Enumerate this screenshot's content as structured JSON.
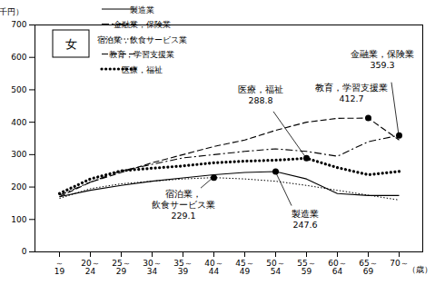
{
  "chart_data": {
    "type": "line",
    "title": "女",
    "x_label": "（歳）",
    "y_label": "（千円）",
    "categories": [
      "～19",
      "20～24",
      "25～29",
      "30～34",
      "35～39",
      "40～44",
      "45～49",
      "50～54",
      "55～59",
      "60～64",
      "65～69",
      "70～"
    ],
    "ylim": [
      0,
      700
    ],
    "yticks": [
      0,
      100,
      200,
      300,
      400,
      500,
      600,
      700
    ],
    "grid": false,
    "legend": "top-left",
    "series": [
      {
        "name": "製造業",
        "color": "#000000",
        "line_style": "solid",
        "values": [
          170,
          190,
          205,
          218,
          228,
          238,
          245,
          247.6,
          225,
          180,
          174,
          174
        ]
      },
      {
        "name": "金融業，保険業",
        "color": "#000000",
        "line_style": "dashdot",
        "values": [
          175,
          215,
          250,
          270,
          290,
          300,
          310,
          318,
          310,
          295,
          340,
          359.3
        ]
      },
      {
        "name": "宿泊業，飲食サービス業",
        "color": "#000000",
        "line_style": "dotted",
        "values": [
          165,
          195,
          210,
          218,
          225,
          229.1,
          225,
          218,
          205,
          190,
          175,
          160
        ]
      },
      {
        "name": "教育，学習支援業",
        "color": "#000000",
        "line_style": "dashed",
        "values": [
          170,
          215,
          245,
          275,
          300,
          325,
          345,
          375,
          400,
          412,
          412.7,
          345
        ]
      },
      {
        "name": "医療，福祉",
        "color": "#000000",
        "line_style": "heavy_dotted",
        "values": [
          180,
          225,
          250,
          258,
          265,
          275,
          280,
          283,
          288.8,
          260,
          238,
          248
        ]
      }
    ],
    "annotations": [
      {
        "label": "医療，福祉",
        "category": "55～59",
        "value": 288.8
      },
      {
        "label": "教育，学習支援業",
        "category": "65～69",
        "value": 412.7
      },
      {
        "label": "金融業，保険業",
        "category": "70～",
        "value": 359.3
      },
      {
        "label": "宿泊業，\n飲食サービス業",
        "category": "40～44",
        "value": 229.1
      },
      {
        "label": "製造業",
        "category": "50～54",
        "value": 247.6
      }
    ]
  }
}
